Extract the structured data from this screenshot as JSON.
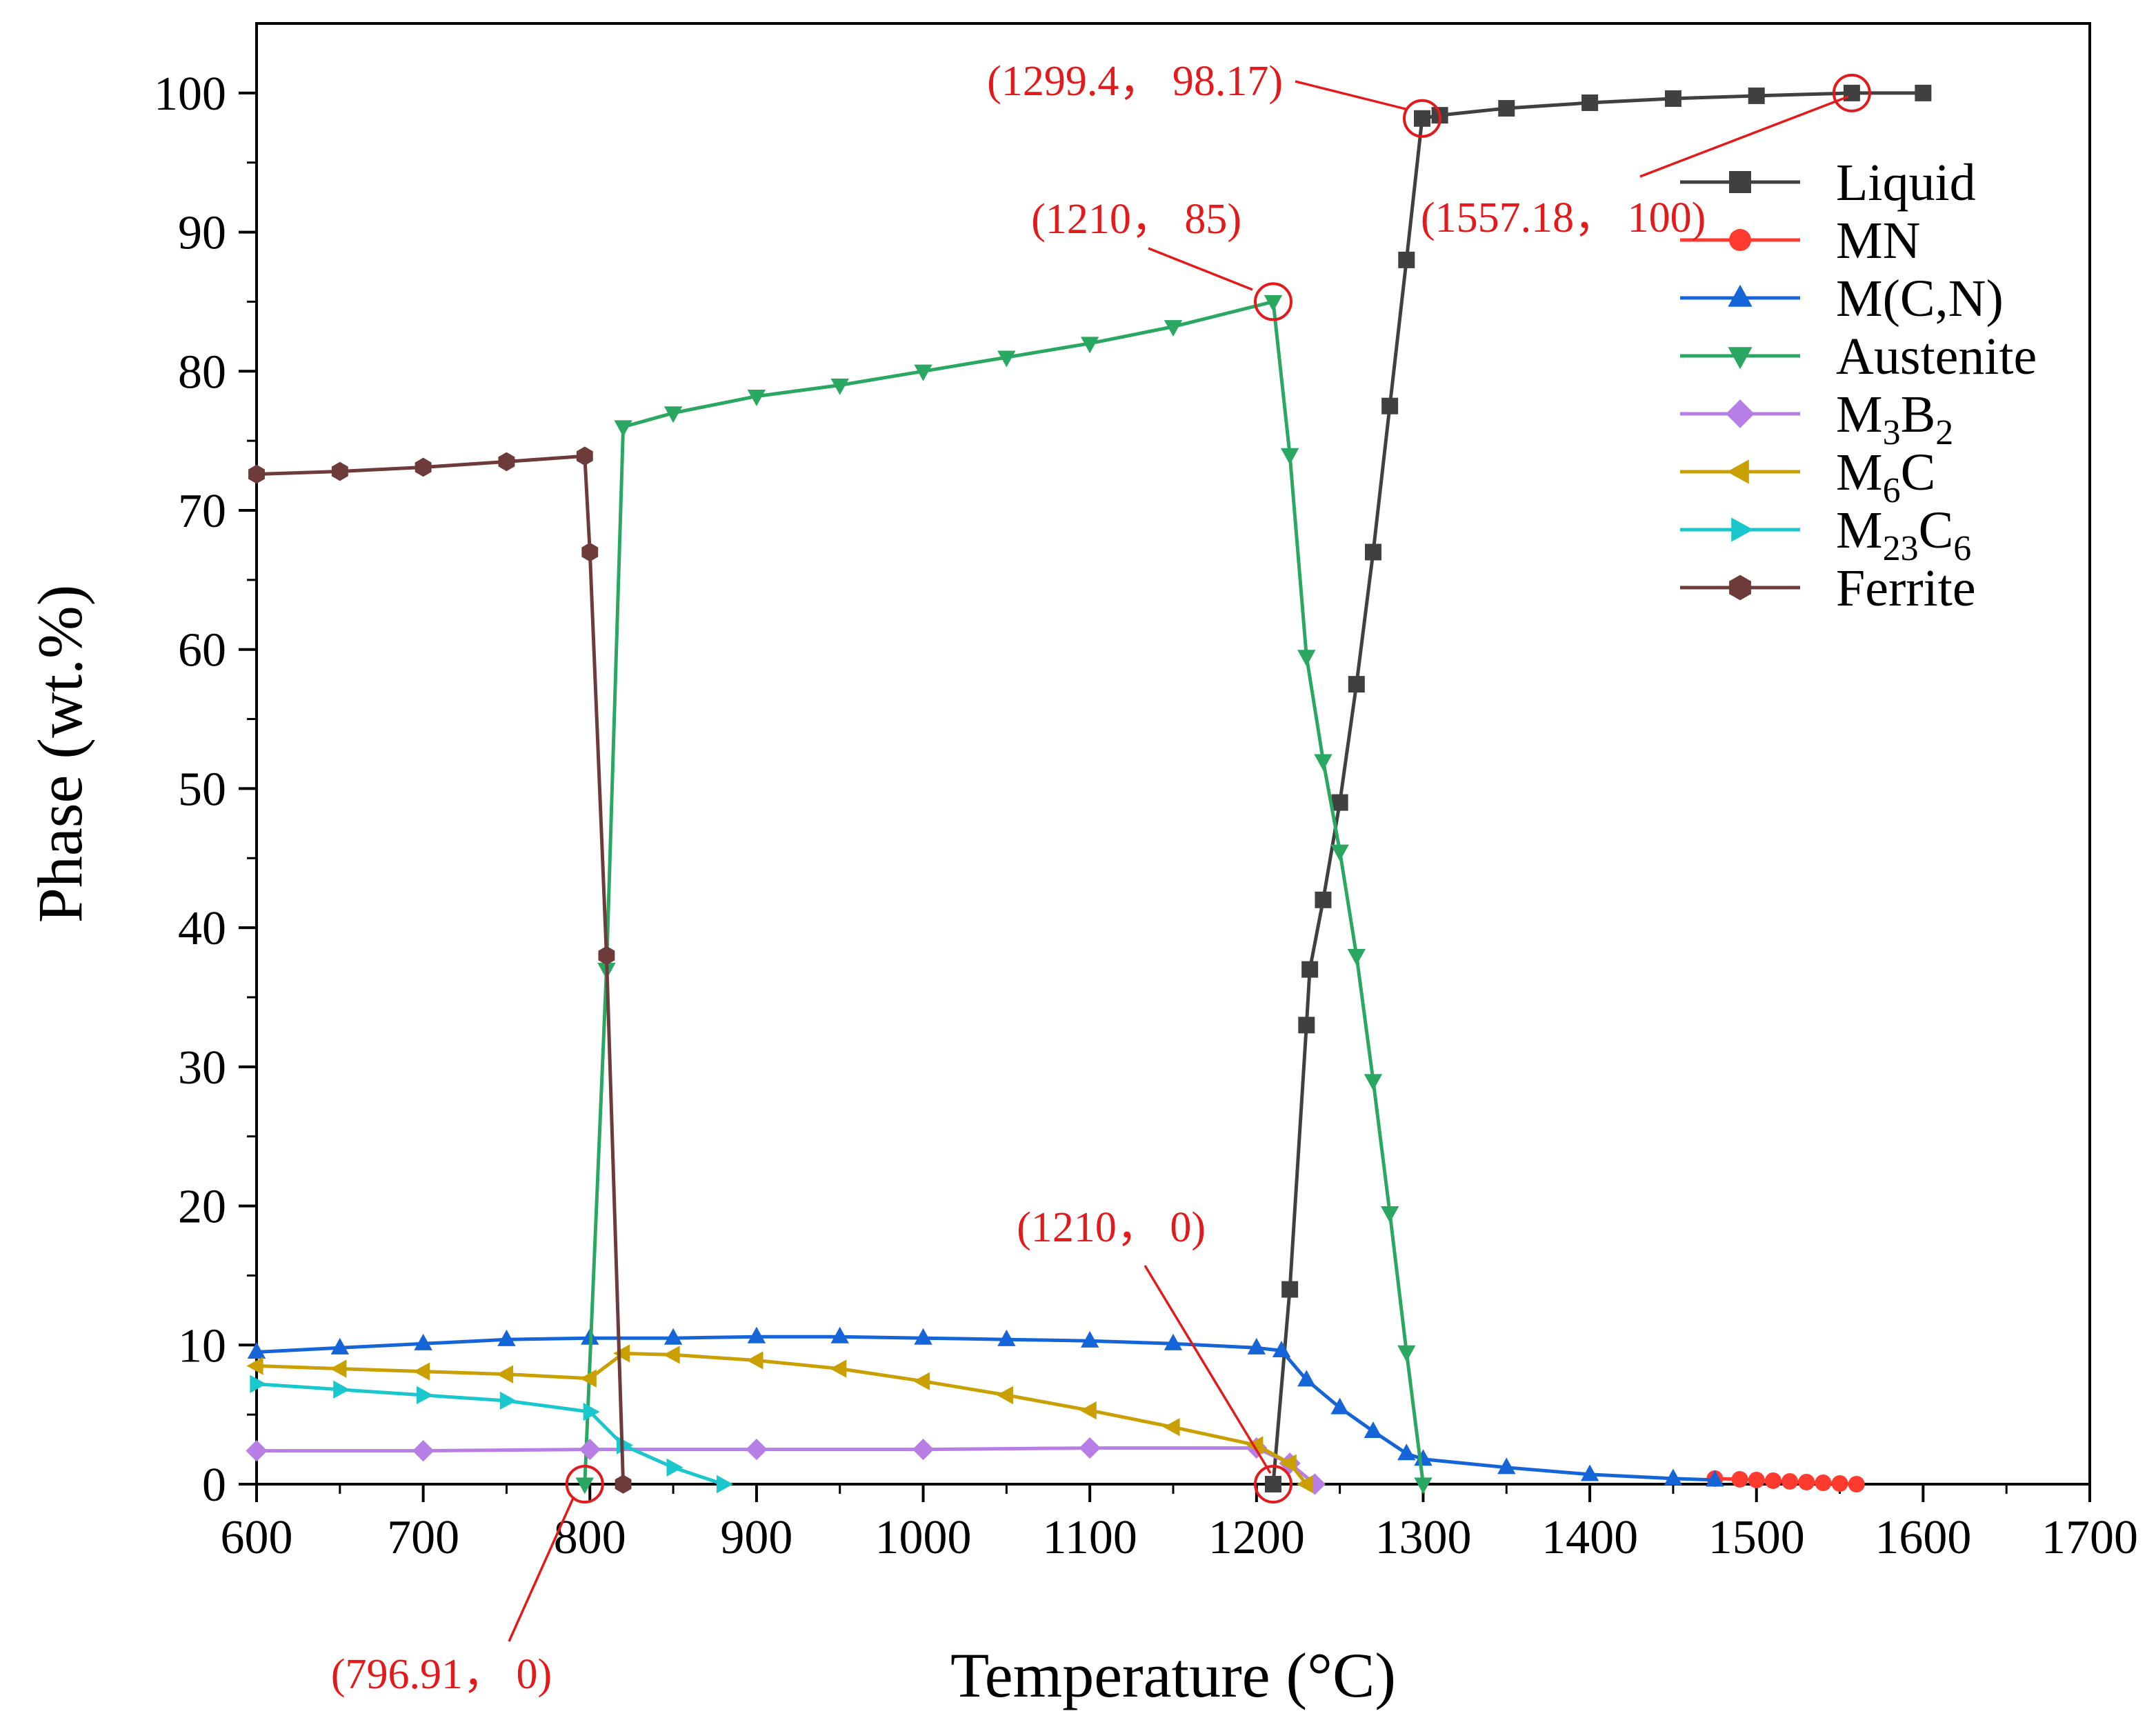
{
  "chart_data": {
    "type": "line",
    "title": "",
    "xlabel": "Temperature (°C)",
    "ylabel": "Phase (wt.%)",
    "xlim": [
      600,
      1700
    ],
    "ylim": [
      0,
      105
    ],
    "x_ticks": [
      600,
      700,
      800,
      900,
      1000,
      1100,
      1200,
      1300,
      1400,
      1500,
      1600,
      1700
    ],
    "y_ticks": [
      0,
      10,
      20,
      30,
      40,
      50,
      60,
      70,
      80,
      90,
      100
    ],
    "legend_position": "top-right",
    "series": [
      {
        "name": "Liquid",
        "legend": {
          "base": "Liquid",
          "sub": "",
          "mid": "",
          "sub2": ""
        },
        "color": "#404040",
        "marker": "square",
        "x": [
          1210,
          1220,
          1230,
          1232,
          1240,
          1250,
          1260,
          1270,
          1280,
          1290,
          1299.4,
          1310,
          1350,
          1400,
          1450,
          1500,
          1557.18,
          1600
        ],
        "y": [
          0,
          14,
          33,
          37,
          42,
          49,
          57.5,
          67,
          77.5,
          88,
          98.17,
          98.4,
          98.9,
          99.3,
          99.6,
          99.8,
          100,
          100
        ]
      },
      {
        "name": "MN",
        "legend": {
          "base": "MN",
          "sub": "",
          "mid": "",
          "sub2": ""
        },
        "color": "#ff3b30",
        "marker": "circle",
        "x": [
          1475,
          1490,
          1500,
          1510,
          1520,
          1530,
          1540,
          1550,
          1560
        ],
        "y": [
          0.4,
          0.35,
          0.3,
          0.25,
          0.2,
          0.15,
          0.1,
          0.05,
          0
        ]
      },
      {
        "name": "M(C,N)",
        "legend": {
          "base": "M(C,N)",
          "sub": "",
          "mid": "",
          "sub2": ""
        },
        "color": "#1565d8",
        "marker": "triangle-up",
        "x": [
          600,
          650,
          700,
          750,
          800,
          850,
          900,
          950,
          1000,
          1050,
          1100,
          1150,
          1200,
          1215,
          1230,
          1250,
          1270,
          1290,
          1300,
          1350,
          1400,
          1450,
          1475
        ],
        "y": [
          9.5,
          9.8,
          10.1,
          10.4,
          10.5,
          10.5,
          10.6,
          10.6,
          10.5,
          10.4,
          10.3,
          10.1,
          9.8,
          9.6,
          7.5,
          5.5,
          3.8,
          2.2,
          1.8,
          1.2,
          0.7,
          0.4,
          0.3
        ]
      },
      {
        "name": "Austenite",
        "legend": {
          "base": "Austenite",
          "sub": "",
          "mid": "",
          "sub2": ""
        },
        "color": "#2aa862",
        "marker": "triangle-down",
        "x": [
          796.91,
          810,
          820,
          850,
          900,
          950,
          1000,
          1050,
          1100,
          1150,
          1210,
          1220,
          1230,
          1240,
          1250,
          1260,
          1270,
          1280,
          1290,
          1300
        ],
        "y": [
          0,
          37,
          76,
          77,
          78.2,
          79,
          80,
          81,
          82,
          83.2,
          85,
          74,
          59.5,
          52,
          45.5,
          38,
          29,
          19.5,
          9.5,
          0
        ]
      },
      {
        "name": "M3B2",
        "legend": {
          "base": "M",
          "sub": "3",
          "mid": "B",
          "sub2": "2"
        },
        "color": "#b77ee6",
        "marker": "diamond",
        "x": [
          600,
          700,
          800,
          900,
          1000,
          1100,
          1200,
          1220,
          1235
        ],
        "y": [
          2.4,
          2.4,
          2.5,
          2.5,
          2.5,
          2.6,
          2.6,
          1.5,
          0
        ]
      },
      {
        "name": "M6C",
        "legend": {
          "base": "M",
          "sub": "6",
          "mid": "C",
          "sub2": ""
        },
        "color": "#c9a000",
        "marker": "triangle-left",
        "x": [
          600,
          650,
          700,
          750,
          800,
          820,
          850,
          900,
          950,
          1000,
          1050,
          1100,
          1150,
          1200,
          1220,
          1230
        ],
        "y": [
          8.5,
          8.3,
          8.1,
          7.9,
          7.6,
          9.4,
          9.3,
          8.9,
          8.3,
          7.4,
          6.4,
          5.3,
          4.1,
          2.8,
          1.5,
          0
        ]
      },
      {
        "name": "M23C6",
        "legend": {
          "base": "M",
          "sub": "23",
          "mid": "C",
          "sub2": "6"
        },
        "color": "#19c7cc",
        "marker": "triangle-right",
        "x": [
          600,
          650,
          700,
          750,
          800,
          820,
          850,
          880
        ],
        "y": [
          7.2,
          6.8,
          6.4,
          6.0,
          5.2,
          2.8,
          1.2,
          0
        ]
      },
      {
        "name": "Ferrite",
        "legend": {
          "base": "Ferrite",
          "sub": "",
          "mid": "",
          "sub2": ""
        },
        "color": "#6e3b3b",
        "marker": "hexagon",
        "x": [
          600,
          650,
          700,
          750,
          796.91,
          800,
          810,
          820
        ],
        "y": [
          72.6,
          72.8,
          73.1,
          73.5,
          73.9,
          67,
          38,
          0
        ]
      }
    ],
    "annotations": [
      {
        "text": "(1299.4， 98.17)",
        "x": 1299.4,
        "y": 98.17
      },
      {
        "text": "(1557.18， 100)",
        "x": 1557.18,
        "y": 100
      },
      {
        "text": "(1210， 85)",
        "x": 1210,
        "y": 85
      },
      {
        "text": "(1210， 0)",
        "x": 1210,
        "y": 0
      },
      {
        "text": "(796.91， 0)",
        "x": 796.91,
        "y": 0
      }
    ]
  }
}
